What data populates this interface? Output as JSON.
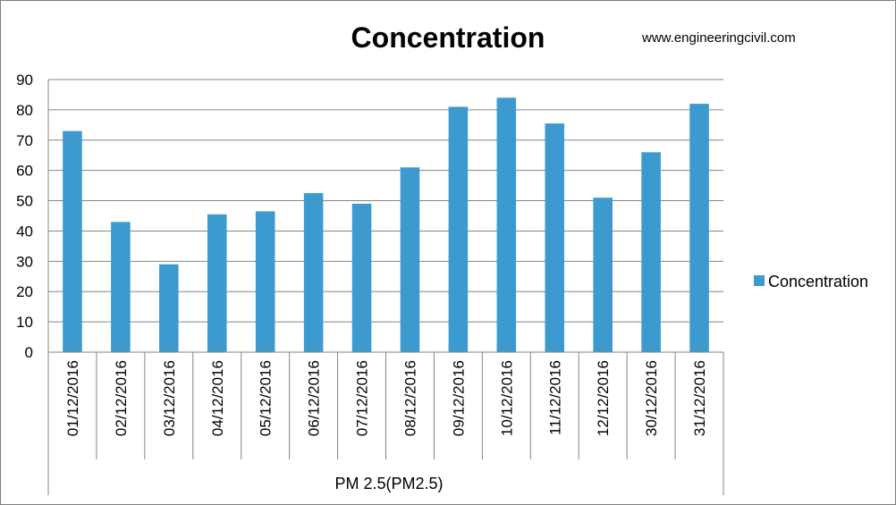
{
  "chart_data": {
    "type": "bar",
    "title": "Concentration",
    "watermark": "www.engineeringcivil.com",
    "group_label": "PM 2.5(PM2.5)",
    "categories": [
      "01/12/2016",
      "02/12/2016",
      "03/12/2016",
      "04/12/2016",
      "05/12/2016",
      "06/12/2016",
      "07/12/2016",
      "08/12/2016",
      "09/12/2016",
      "10/12/2016",
      "11/12/2016",
      "12/12/2016",
      "30/12/2016",
      "31/12/2016"
    ],
    "series": [
      {
        "name": "Concentration",
        "color": "#3c9acf",
        "values": [
          73,
          43,
          29,
          45.5,
          46.5,
          52.5,
          49,
          61,
          81,
          84,
          75.5,
          51,
          66,
          82
        ]
      }
    ],
    "ylim": [
      0,
      90
    ],
    "yticks": [
      "0",
      "10",
      "20",
      "30",
      "40",
      "50",
      "60",
      "70",
      "80",
      "90"
    ],
    "grid": true,
    "legend_position": "right"
  }
}
